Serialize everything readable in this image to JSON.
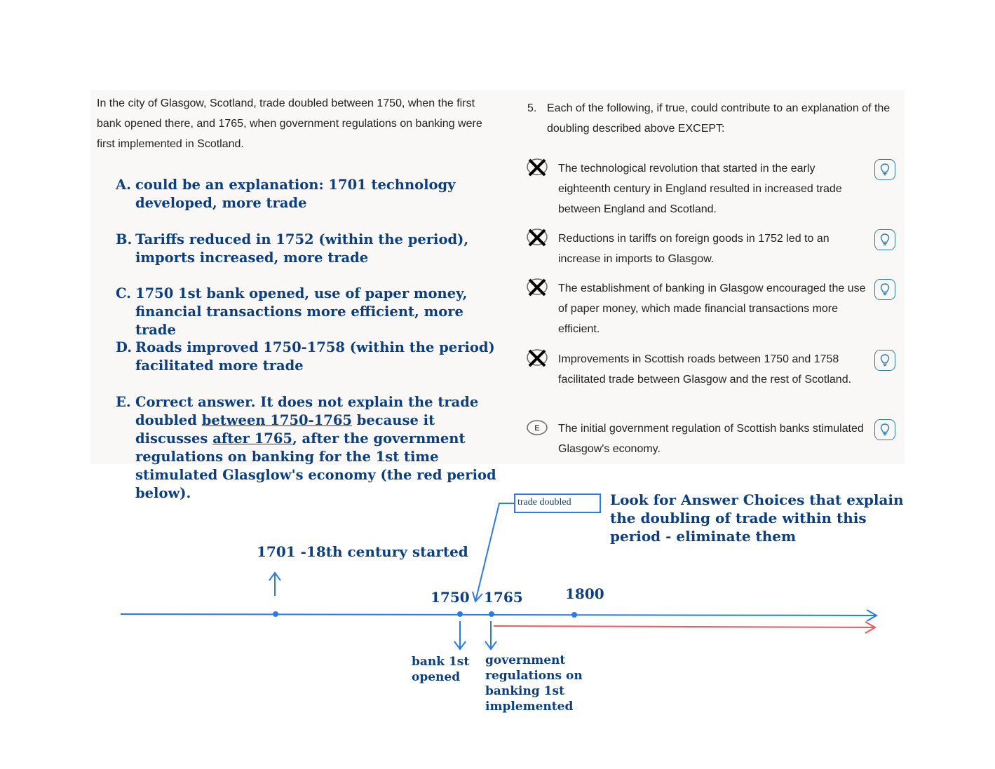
{
  "passage": "In the city of Glasgow, Scotland, trade doubled between 1750, when the first bank opened there, and 1765, when government regulations on banking were first implemented in Scotland.",
  "question": {
    "number": "5.",
    "text": "Each of the following, if true, could contribute to an explanation of the doubling described above EXCEPT:"
  },
  "choices": [
    {
      "letter": "A",
      "text": "The technological revolution that started in the early eighteenth century in England resulted in increased trade between England and Scotland.",
      "eliminated": true
    },
    {
      "letter": "B",
      "text": "Reductions in tariffs on foreign goods in 1752 led to an increase in imports to Glasgow.",
      "eliminated": true
    },
    {
      "letter": "C",
      "text": "The establishment of banking in Glasgow encouraged the use of paper money, which made financial transactions more efficient.",
      "eliminated": true
    },
    {
      "letter": "D",
      "text": "Improvements in Scottish roads between 1750 and 1758 facilitated trade between Glasgow and the rest of Scotland.",
      "eliminated": true
    },
    {
      "letter": "E",
      "text": "The initial government regulation of Scottish banks stimulated Glasgow's economy.",
      "eliminated": false
    }
  ],
  "notes": [
    {
      "label": "A.",
      "text": "could be an explanation: 1701 technology developed, more trade"
    },
    {
      "label": "B.",
      "text": "Tariffs reduced in 1752 (within the period), imports increased, more trade"
    },
    {
      "label": "C.",
      "text": "1750 1st bank opened, use of paper money, financial transactions more efficient, more trade"
    },
    {
      "label": "D.",
      "text": "Roads improved 1750-1758 (within the period) facilitated more trade"
    },
    {
      "label": "E.",
      "parts": [
        "Correct answer. It does not explain the trade doubled ",
        "between 1750-1765",
        " because it discusses ",
        "after 1765",
        ", after the government regulations on banking for the 1st time stimulated Glasglow's economy (the red period below)."
      ]
    }
  ],
  "timeline": {
    "annotation_1701": "1701 -18th century started",
    "trade_doubled": "trade doubled",
    "hint": "Look for Answer Choices that explain the doubling of trade within this period - eliminate them",
    "years": [
      "1750",
      "1765",
      "1800"
    ],
    "bank_opened": "bank 1st opened",
    "regulations": "government regulations on banking 1st implemented"
  },
  "colors": {
    "timeline": "#2b7be4",
    "red_period": "#ee5a5a",
    "handwriting": "#0e3f7d",
    "hint_border": "#2f7fa8"
  },
  "icons": {
    "eliminated": "x-circle-icon",
    "hint": "lightbulb-icon"
  }
}
